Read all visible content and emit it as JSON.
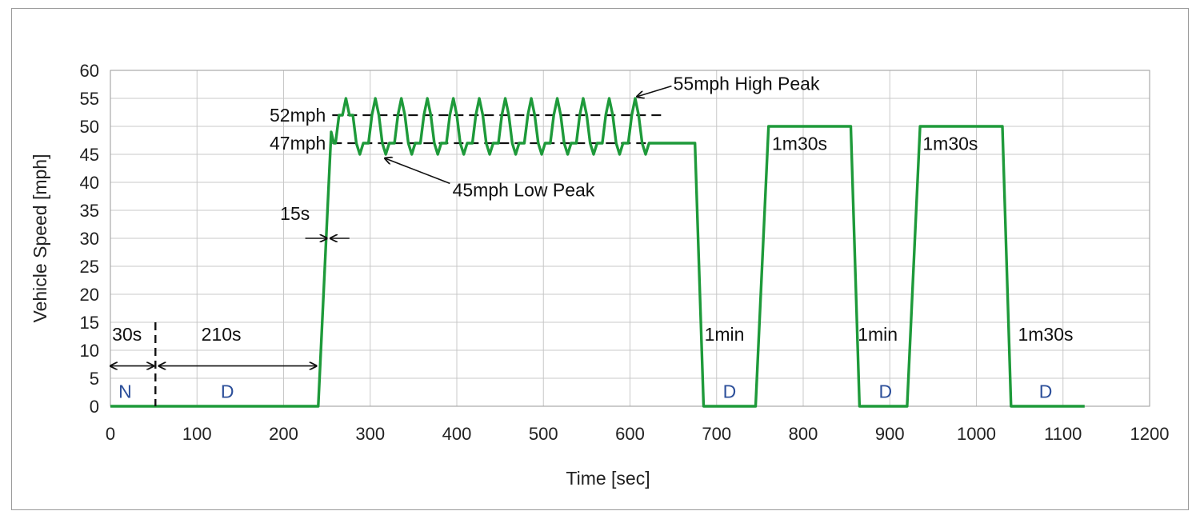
{
  "chart_data": {
    "type": "line",
    "xlabel": "Time [sec]",
    "ylabel": "Vehicle Speed [mph]",
    "xlim": [
      0,
      1200
    ],
    "ylim": [
      0,
      60
    ],
    "xticks": [
      0,
      100,
      200,
      300,
      400,
      500,
      600,
      700,
      800,
      900,
      1000,
      1100,
      1200
    ],
    "yticks": [
      0,
      5,
      10,
      15,
      20,
      25,
      30,
      35,
      40,
      45,
      50,
      55,
      60
    ],
    "grid": true,
    "line_color": "#1e9a3a",
    "series": [
      {
        "x": [
          0,
          240,
          255,
          258,
          260,
          264,
          268,
          272,
          276,
          280,
          284,
          288,
          292,
          298,
          302,
          306,
          310,
          314,
          318,
          322,
          328,
          332,
          336,
          340,
          344,
          348,
          352,
          358,
          362,
          366,
          370,
          374,
          378,
          382,
          388,
          392,
          396,
          400,
          404,
          408,
          412,
          418,
          422,
          426,
          430,
          434,
          438,
          442,
          448,
          452,
          456,
          460,
          464,
          468,
          472,
          478,
          482,
          486,
          490,
          494,
          498,
          502,
          508,
          512,
          516,
          520,
          524,
          528,
          532,
          538,
          542,
          546,
          550,
          554,
          558,
          562,
          568,
          572,
          576,
          580,
          584,
          588,
          592,
          598,
          602,
          606,
          610,
          614,
          618,
          622,
          625,
          630,
          675,
          685,
          745,
          760,
          855,
          865,
          920,
          935,
          1030,
          1040,
          1125
        ],
        "y": [
          0,
          0,
          49,
          47,
          47,
          52,
          52,
          55,
          52,
          52,
          47,
          45,
          47,
          47,
          52,
          55,
          52,
          47,
          45,
          47,
          47,
          52,
          55,
          52,
          47,
          45,
          47,
          47,
          52,
          55,
          52,
          47,
          45,
          47,
          47,
          52,
          55,
          52,
          47,
          45,
          47,
          47,
          52,
          55,
          52,
          47,
          45,
          47,
          47,
          52,
          55,
          52,
          47,
          45,
          47,
          47,
          52,
          55,
          52,
          47,
          45,
          47,
          47,
          52,
          55,
          52,
          47,
          45,
          47,
          47,
          52,
          55,
          52,
          47,
          45,
          47,
          47,
          52,
          55,
          52,
          47,
          45,
          47,
          47,
          52,
          55,
          52,
          47,
          45,
          47,
          47,
          47,
          47,
          0,
          0,
          50,
          50,
          0,
          0,
          50,
          50,
          0,
          0
        ]
      }
    ],
    "reference_lines": [
      {
        "label": "52mph",
        "y": 52,
        "x_start": 210,
        "x_end": 640
      },
      {
        "label": "47mph",
        "y": 47,
        "x_start": 210,
        "x_end": 640
      }
    ],
    "divider_x": 52,
    "annotations": {
      "high_peak": "55mph High Peak",
      "low_peak": "45mph Low Peak",
      "accel": "15s",
      "seg_n_duration": "30s",
      "seg_d_duration": "210s",
      "stop1": "1min",
      "stop2": "1min",
      "stop3": "1m30s",
      "cruise1": "1m30s",
      "cruise2": "1m30s"
    },
    "gear_labels": [
      {
        "label": "N",
        "x": 17
      },
      {
        "label": "D",
        "x": 135
      },
      {
        "label": "D",
        "x": 715
      },
      {
        "label": "D",
        "x": 895
      },
      {
        "label": "D",
        "x": 1080
      }
    ]
  }
}
